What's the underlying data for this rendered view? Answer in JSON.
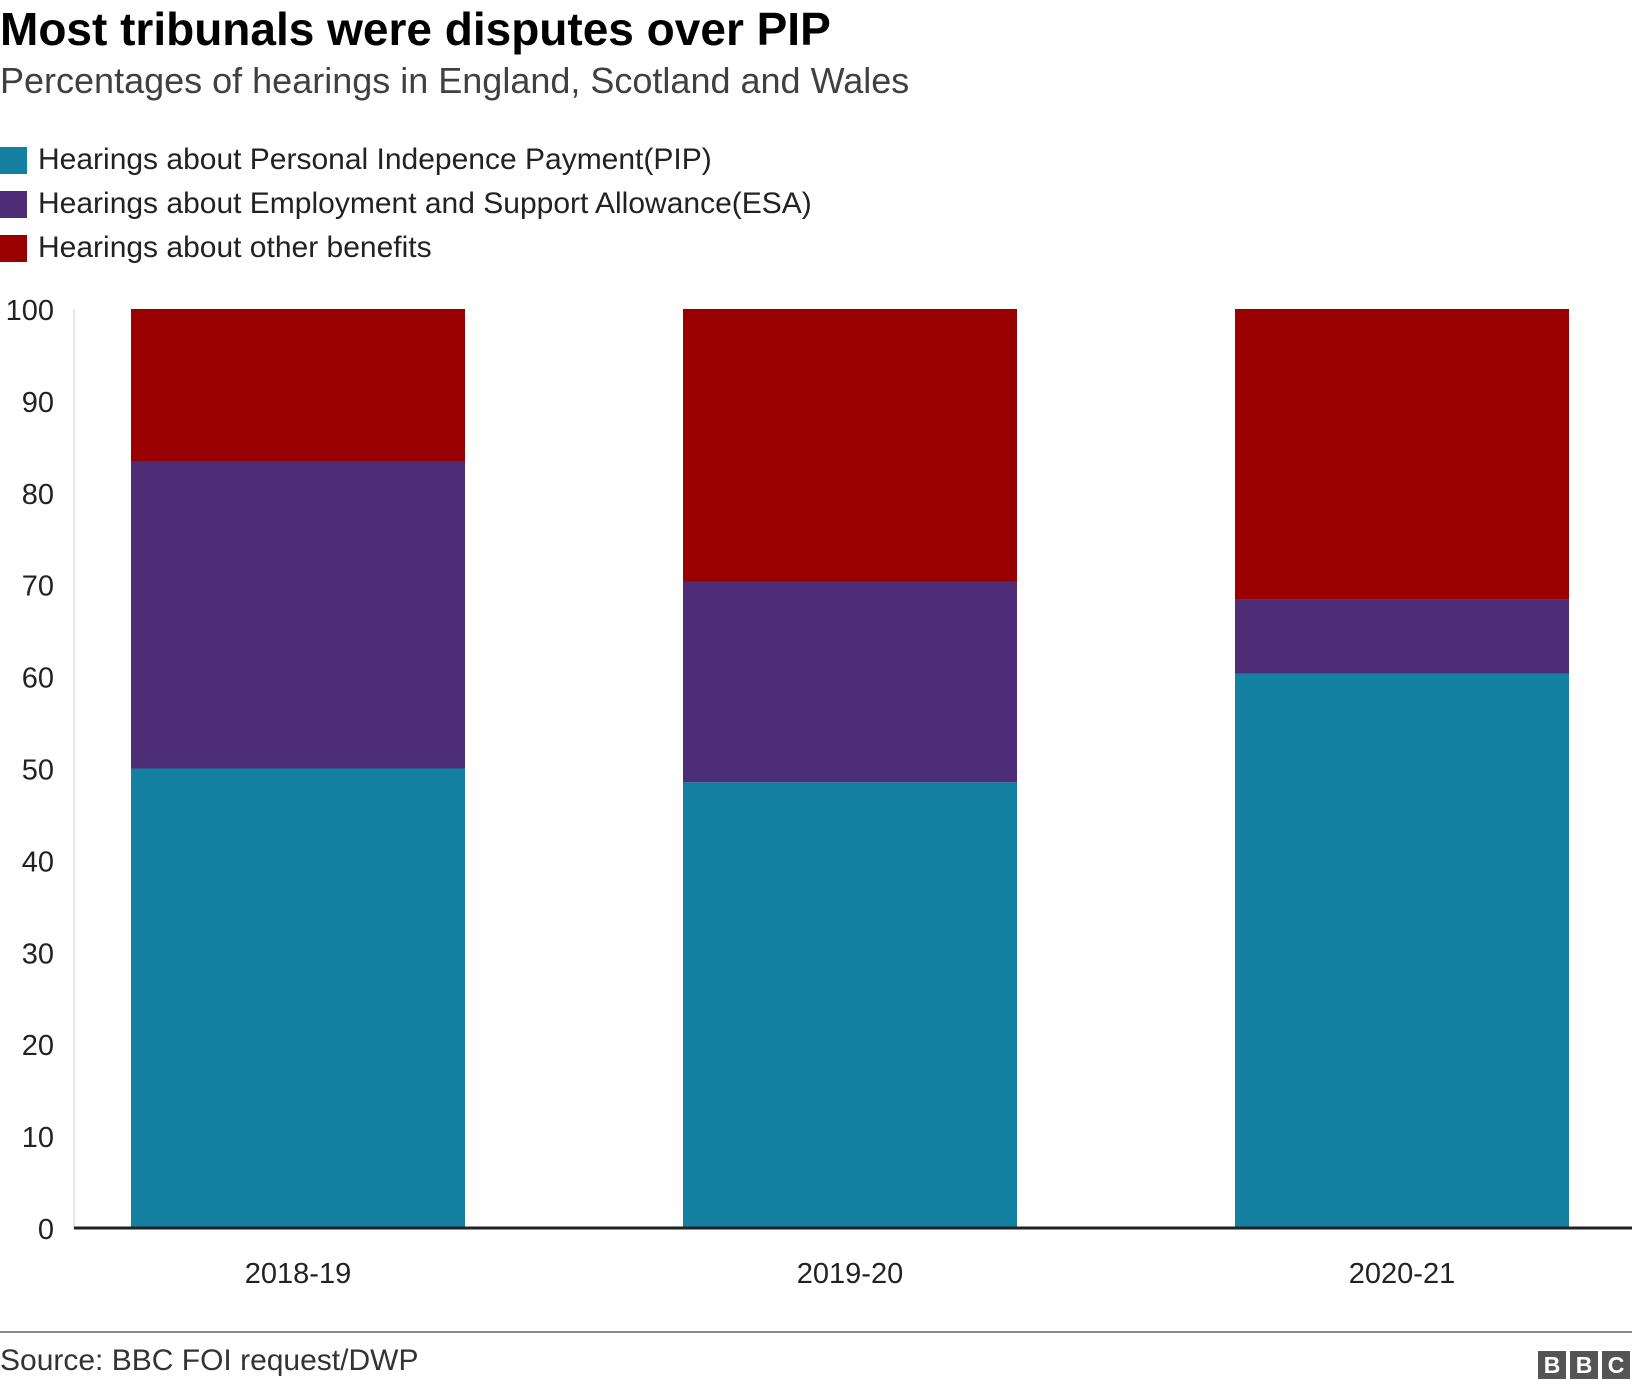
{
  "chart_data": {
    "type": "bar",
    "stacked": true,
    "title": "Most tribunals were disputes over PIP",
    "subtitle": "Percentages of hearings in England, Scotland and Wales",
    "categories": [
      "2018-19",
      "2019-20",
      "2020-21"
    ],
    "series": [
      {
        "name": "Hearings about Personal Indepence Payment(PIP)",
        "color": "#1380a1",
        "values": [
          50,
          48.5,
          60.3
        ]
      },
      {
        "name": "Hearings about Employment and Support Allowance(ESA)",
        "color": "#4d2d77",
        "values": [
          33.4,
          21.8,
          8.1
        ]
      },
      {
        "name": "Hearings about other benefits",
        "color": "#990000",
        "values": [
          16.6,
          29.7,
          31.6
        ]
      }
    ],
    "ylim": [
      0,
      100
    ],
    "yticks": [
      "0",
      "10",
      "20",
      "30",
      "40",
      "50",
      "60",
      "70",
      "80",
      "90",
      "100"
    ],
    "grid": false,
    "legend_position": "top-left"
  },
  "source": "Source: BBC FOI request/DWP",
  "logo": [
    "B",
    "B",
    "C"
  ]
}
